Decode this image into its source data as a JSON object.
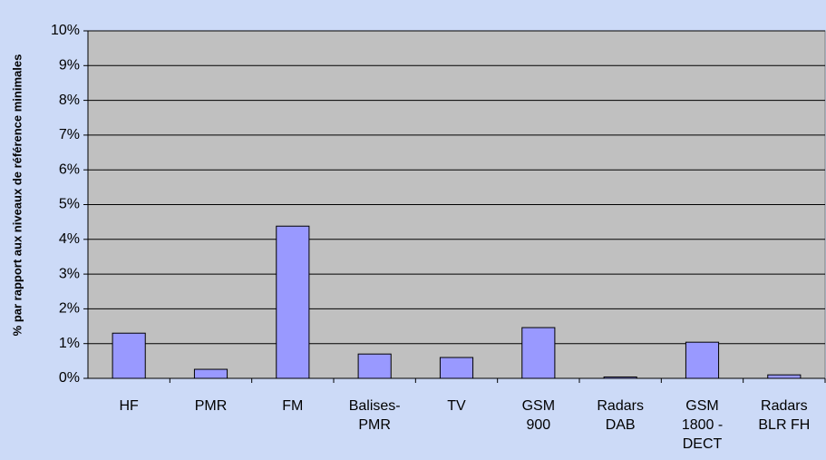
{
  "chart_data": {
    "type": "bar",
    "y_label": "% par rapport aux niveaux de référence minimales",
    "categories": [
      "HF",
      "PMR",
      "FM",
      "Balises-PMR",
      "TV",
      "GSM 900",
      "Radars DAB",
      "GSM 1800 - DECT",
      "Radars BLR FH"
    ],
    "values": [
      1.3,
      0.26,
      4.38,
      0.7,
      0.6,
      1.46,
      0.04,
      1.04,
      0.1
    ],
    "color": "#9999ff",
    "ylim": [
      0,
      10
    ],
    "yticks": [
      {
        "value": 0,
        "label": "0%"
      },
      {
        "value": 1,
        "label": "1%"
      },
      {
        "value": 2,
        "label": "2%"
      },
      {
        "value": 3,
        "label": "3%"
      },
      {
        "value": 4,
        "label": "4%"
      },
      {
        "value": 5,
        "label": "5%"
      },
      {
        "value": 6,
        "label": "6%"
      },
      {
        "value": 7,
        "label": "7%"
      },
      {
        "value": 8,
        "label": "8%"
      },
      {
        "value": 9,
        "label": "9%"
      },
      {
        "value": 10,
        "label": "10%"
      }
    ],
    "grid": true
  }
}
